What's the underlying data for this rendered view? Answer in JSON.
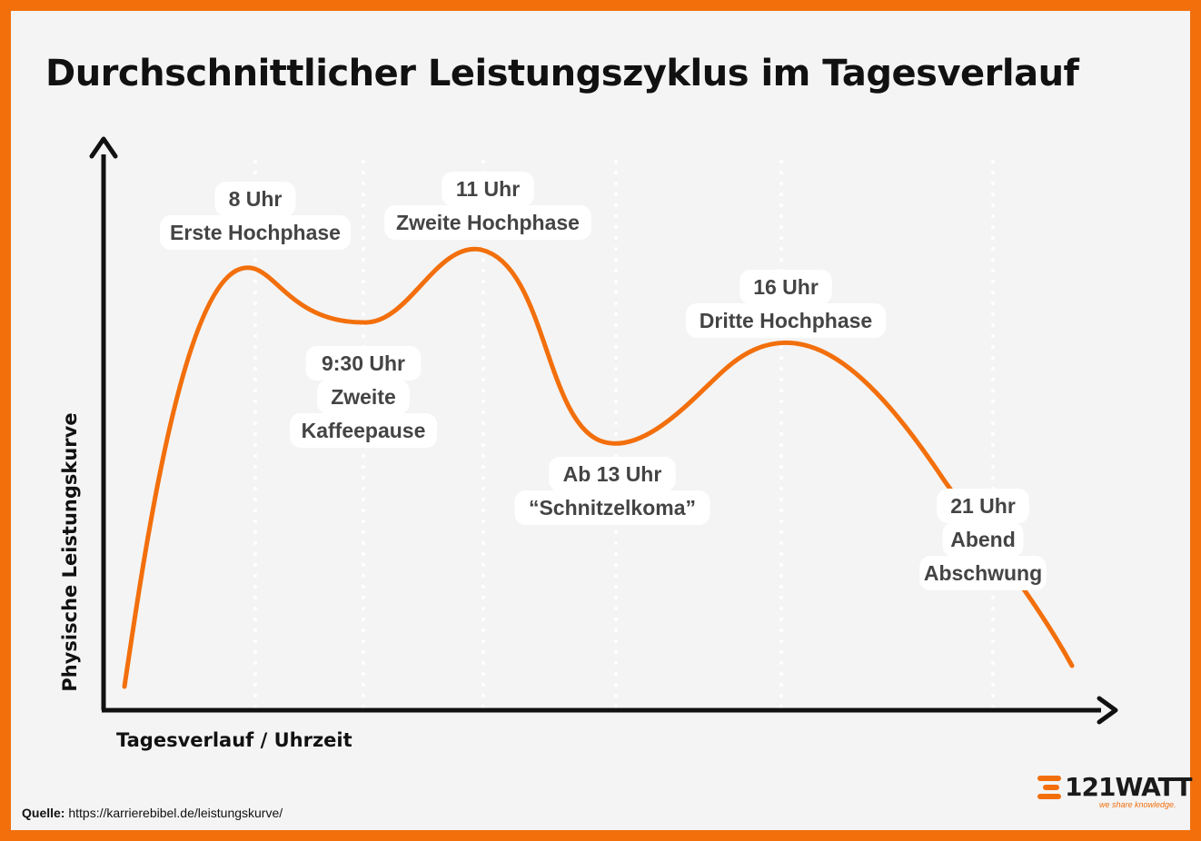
{
  "title": "Durchschnittlicher Leistungszyklus im Tagesverlauf",
  "colors": {
    "accent": "#f26f0c",
    "axis": "#111111",
    "annotation_text": "#444444",
    "label_bg": "#ffffff"
  },
  "source": {
    "label": "Quelle:",
    "url": "https://karrierebibel.de/leistungskurve/"
  },
  "logo": {
    "name": "121WATT",
    "tagline": "we share knowledge."
  },
  "chart_data": {
    "type": "line",
    "title": "Durchschnittlicher Leistungszyklus im Tagesverlauf",
    "xlabel": "Tagesverlauf / Uhrzeit",
    "ylabel": "Physische Leistungskurve",
    "grid": "vertical dotted lines at labelled times",
    "legend": "none",
    "annotations": [
      {
        "lines": [
          "8 Uhr",
          "Erste Hochphase"
        ]
      },
      {
        "lines": [
          "9:30 Uhr",
          "Zweite",
          "Kaffeepause"
        ]
      },
      {
        "lines": [
          "11 Uhr",
          "Zweite Hochphase"
        ]
      },
      {
        "lines": [
          "Ab 13 Uhr",
          "“Schnitzelkoma”"
        ]
      },
      {
        "lines": [
          "16 Uhr",
          "Dritte Hochphase"
        ]
      },
      {
        "lines": [
          "21 Uhr",
          "Abend",
          "Abschwung"
        ]
      }
    ]
  }
}
